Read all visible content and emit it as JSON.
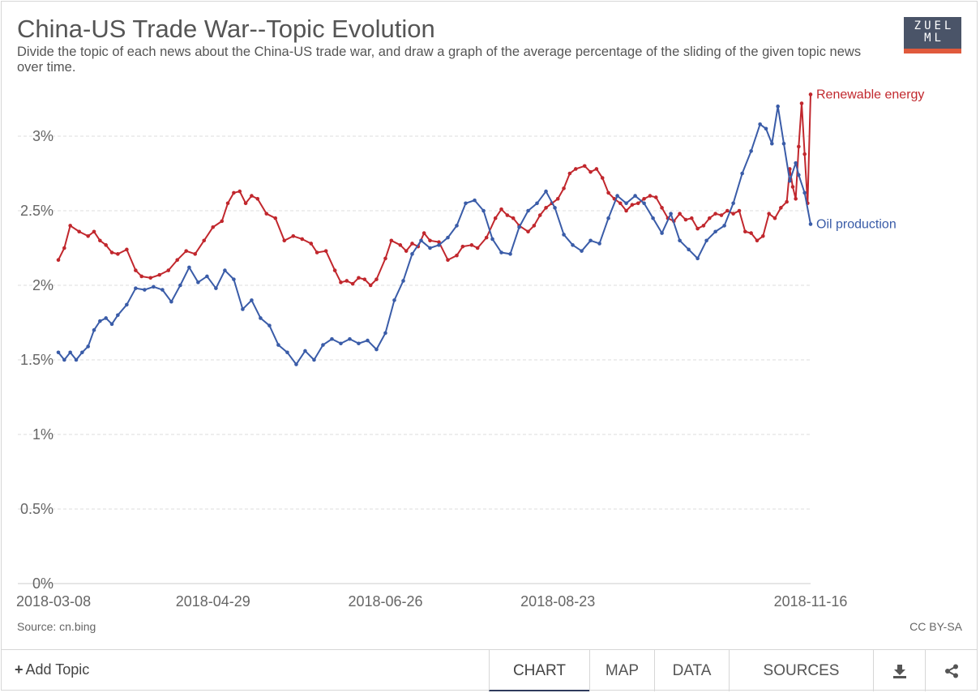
{
  "header": {
    "title": "China-US Trade War--Topic Evolution",
    "subtitle": "Divide the topic of each news about the China-US trade war, and draw a graph of the average percentage of the sliding of the given topic news over time.",
    "logo_text": "ZUEL ML"
  },
  "footer": {
    "source": "Source: cn.bing",
    "license": "CC BY-SA",
    "add_topic": "Add Topic",
    "tabs": [
      "CHART",
      "MAP",
      "DATA",
      "SOURCES"
    ],
    "icons": [
      "download-icon",
      "share-icon"
    ]
  },
  "colors": {
    "renewable": "#c1272d",
    "oil": "#3a5ca8",
    "grid": "#dddddd",
    "accent": "#2e3a5c"
  },
  "chart_data": {
    "type": "line",
    "xlabel": "",
    "ylabel": "",
    "x_range": [
      "2018-03-08",
      "2018-11-16"
    ],
    "x_ticks": [
      "2018-03-08",
      "2018-04-29",
      "2018-06-26",
      "2018-08-23",
      "2018-11-16"
    ],
    "ylim": [
      0,
      3.3
    ],
    "y_ticks": [
      0,
      0.5,
      1,
      1.5,
      2,
      2.5,
      3
    ],
    "y_tick_labels": [
      "0%",
      "0.5%",
      "1%",
      "1.5%",
      "2%",
      "2.5%",
      "3%"
    ],
    "grid": true,
    "series": [
      {
        "name": "Renewable energy",
        "points": [
          [
            "2018-03-08",
            2.17
          ],
          [
            "2018-03-10",
            2.25
          ],
          [
            "2018-03-12",
            2.4
          ],
          [
            "2018-03-15",
            2.36
          ],
          [
            "2018-03-18",
            2.33
          ],
          [
            "2018-03-20",
            2.36
          ],
          [
            "2018-03-22",
            2.3
          ],
          [
            "2018-03-24",
            2.27
          ],
          [
            "2018-03-26",
            2.22
          ],
          [
            "2018-03-28",
            2.21
          ],
          [
            "2018-03-31",
            2.24
          ],
          [
            "2018-04-03",
            2.1
          ],
          [
            "2018-04-05",
            2.06
          ],
          [
            "2018-04-08",
            2.05
          ],
          [
            "2018-04-11",
            2.07
          ],
          [
            "2018-04-14",
            2.1
          ],
          [
            "2018-04-17",
            2.17
          ],
          [
            "2018-04-20",
            2.23
          ],
          [
            "2018-04-23",
            2.21
          ],
          [
            "2018-04-26",
            2.3
          ],
          [
            "2018-04-29",
            2.39
          ],
          [
            "2018-05-02",
            2.43
          ],
          [
            "2018-05-04",
            2.55
          ],
          [
            "2018-05-06",
            2.62
          ],
          [
            "2018-05-08",
            2.63
          ],
          [
            "2018-05-10",
            2.55
          ],
          [
            "2018-05-12",
            2.6
          ],
          [
            "2018-05-14",
            2.58
          ],
          [
            "2018-05-17",
            2.48
          ],
          [
            "2018-05-20",
            2.45
          ],
          [
            "2018-05-23",
            2.3
          ],
          [
            "2018-05-26",
            2.33
          ],
          [
            "2018-05-29",
            2.31
          ],
          [
            "2018-06-01",
            2.28
          ],
          [
            "2018-06-03",
            2.22
          ],
          [
            "2018-06-06",
            2.23
          ],
          [
            "2018-06-09",
            2.1
          ],
          [
            "2018-06-11",
            2.02
          ],
          [
            "2018-06-13",
            2.03
          ],
          [
            "2018-06-15",
            2.01
          ],
          [
            "2018-06-17",
            2.05
          ],
          [
            "2018-06-19",
            2.04
          ],
          [
            "2018-06-21",
            2.0
          ],
          [
            "2018-06-23",
            2.04
          ],
          [
            "2018-06-26",
            2.18
          ],
          [
            "2018-06-28",
            2.3
          ],
          [
            "2018-07-01",
            2.27
          ],
          [
            "2018-07-03",
            2.23
          ],
          [
            "2018-07-05",
            2.28
          ],
          [
            "2018-07-07",
            2.26
          ],
          [
            "2018-07-09",
            2.35
          ],
          [
            "2018-07-11",
            2.3
          ],
          [
            "2018-07-14",
            2.29
          ],
          [
            "2018-07-17",
            2.17
          ],
          [
            "2018-07-20",
            2.2
          ],
          [
            "2018-07-22",
            2.26
          ],
          [
            "2018-07-25",
            2.27
          ],
          [
            "2018-07-27",
            2.25
          ],
          [
            "2018-07-30",
            2.32
          ],
          [
            "2018-08-02",
            2.45
          ],
          [
            "2018-08-04",
            2.51
          ],
          [
            "2018-08-06",
            2.47
          ],
          [
            "2018-08-08",
            2.45
          ],
          [
            "2018-08-10",
            2.4
          ],
          [
            "2018-08-13",
            2.36
          ],
          [
            "2018-08-15",
            2.4
          ],
          [
            "2018-08-17",
            2.47
          ],
          [
            "2018-08-19",
            2.52
          ],
          [
            "2018-08-21",
            2.55
          ],
          [
            "2018-08-23",
            2.58
          ],
          [
            "2018-08-25",
            2.65
          ],
          [
            "2018-08-27",
            2.75
          ],
          [
            "2018-08-29",
            2.78
          ],
          [
            "2018-09-01",
            2.8
          ],
          [
            "2018-09-03",
            2.76
          ],
          [
            "2018-09-05",
            2.78
          ],
          [
            "2018-09-07",
            2.72
          ],
          [
            "2018-09-09",
            2.62
          ],
          [
            "2018-09-11",
            2.58
          ],
          [
            "2018-09-13",
            2.55
          ],
          [
            "2018-09-15",
            2.5
          ],
          [
            "2018-09-17",
            2.54
          ],
          [
            "2018-09-19",
            2.55
          ],
          [
            "2018-09-21",
            2.58
          ],
          [
            "2018-09-23",
            2.6
          ],
          [
            "2018-09-25",
            2.59
          ],
          [
            "2018-09-27",
            2.52
          ],
          [
            "2018-09-29",
            2.45
          ],
          [
            "2018-10-01",
            2.43
          ],
          [
            "2018-10-03",
            2.48
          ],
          [
            "2018-10-05",
            2.44
          ],
          [
            "2018-10-07",
            2.45
          ],
          [
            "2018-10-09",
            2.38
          ],
          [
            "2018-10-11",
            2.4
          ],
          [
            "2018-10-13",
            2.45
          ],
          [
            "2018-10-15",
            2.48
          ],
          [
            "2018-10-17",
            2.47
          ],
          [
            "2018-10-19",
            2.5
          ],
          [
            "2018-10-21",
            2.48
          ],
          [
            "2018-10-23",
            2.5
          ],
          [
            "2018-10-25",
            2.36
          ],
          [
            "2018-10-27",
            2.35
          ],
          [
            "2018-10-29",
            2.3
          ],
          [
            "2018-10-31",
            2.33
          ],
          [
            "2018-11-02",
            2.48
          ],
          [
            "2018-11-04",
            2.45
          ],
          [
            "2018-11-06",
            2.52
          ],
          [
            "2018-11-08",
            2.56
          ],
          [
            "2018-11-09",
            2.78
          ],
          [
            "2018-11-10",
            2.66
          ],
          [
            "2018-11-11",
            2.58
          ],
          [
            "2018-11-12",
            2.93
          ],
          [
            "2018-11-13",
            3.22
          ],
          [
            "2018-11-14",
            2.88
          ],
          [
            "2018-11-15",
            2.55
          ],
          [
            "2018-11-16",
            3.28
          ]
        ]
      },
      {
        "name": "Oil production",
        "points": [
          [
            "2018-03-08",
            1.55
          ],
          [
            "2018-03-10",
            1.5
          ],
          [
            "2018-03-12",
            1.55
          ],
          [
            "2018-03-14",
            1.5
          ],
          [
            "2018-03-16",
            1.55
          ],
          [
            "2018-03-18",
            1.59
          ],
          [
            "2018-03-20",
            1.7
          ],
          [
            "2018-03-22",
            1.76
          ],
          [
            "2018-03-24",
            1.78
          ],
          [
            "2018-03-26",
            1.74
          ],
          [
            "2018-03-28",
            1.8
          ],
          [
            "2018-03-31",
            1.87
          ],
          [
            "2018-04-03",
            1.98
          ],
          [
            "2018-04-06",
            1.97
          ],
          [
            "2018-04-09",
            1.99
          ],
          [
            "2018-04-12",
            1.97
          ],
          [
            "2018-04-15",
            1.89
          ],
          [
            "2018-04-18",
            2.0
          ],
          [
            "2018-04-21",
            2.12
          ],
          [
            "2018-04-24",
            2.02
          ],
          [
            "2018-04-27",
            2.06
          ],
          [
            "2018-04-30",
            1.98
          ],
          [
            "2018-05-03",
            2.1
          ],
          [
            "2018-05-06",
            2.04
          ],
          [
            "2018-05-09",
            1.84
          ],
          [
            "2018-05-12",
            1.9
          ],
          [
            "2018-05-15",
            1.78
          ],
          [
            "2018-05-18",
            1.73
          ],
          [
            "2018-05-21",
            1.6
          ],
          [
            "2018-05-24",
            1.55
          ],
          [
            "2018-05-27",
            1.47
          ],
          [
            "2018-05-30",
            1.56
          ],
          [
            "2018-06-02",
            1.5
          ],
          [
            "2018-06-05",
            1.6
          ],
          [
            "2018-06-08",
            1.64
          ],
          [
            "2018-06-11",
            1.61
          ],
          [
            "2018-06-14",
            1.64
          ],
          [
            "2018-06-17",
            1.61
          ],
          [
            "2018-06-20",
            1.63
          ],
          [
            "2018-06-23",
            1.57
          ],
          [
            "2018-06-26",
            1.68
          ],
          [
            "2018-06-29",
            1.9
          ],
          [
            "2018-07-02",
            2.03
          ],
          [
            "2018-07-05",
            2.21
          ],
          [
            "2018-07-08",
            2.3
          ],
          [
            "2018-07-11",
            2.25
          ],
          [
            "2018-07-14",
            2.27
          ],
          [
            "2018-07-17",
            2.32
          ],
          [
            "2018-07-20",
            2.4
          ],
          [
            "2018-07-23",
            2.55
          ],
          [
            "2018-07-26",
            2.57
          ],
          [
            "2018-07-29",
            2.5
          ],
          [
            "2018-08-01",
            2.31
          ],
          [
            "2018-08-04",
            2.22
          ],
          [
            "2018-08-07",
            2.21
          ],
          [
            "2018-08-10",
            2.39
          ],
          [
            "2018-08-13",
            2.5
          ],
          [
            "2018-08-16",
            2.55
          ],
          [
            "2018-08-19",
            2.63
          ],
          [
            "2018-08-22",
            2.52
          ],
          [
            "2018-08-25",
            2.34
          ],
          [
            "2018-08-28",
            2.27
          ],
          [
            "2018-08-31",
            2.23
          ],
          [
            "2018-09-03",
            2.3
          ],
          [
            "2018-09-06",
            2.28
          ],
          [
            "2018-09-09",
            2.45
          ],
          [
            "2018-09-12",
            2.6
          ],
          [
            "2018-09-15",
            2.55
          ],
          [
            "2018-09-18",
            2.6
          ],
          [
            "2018-09-21",
            2.55
          ],
          [
            "2018-09-24",
            2.45
          ],
          [
            "2018-09-27",
            2.35
          ],
          [
            "2018-09-30",
            2.48
          ],
          [
            "2018-10-03",
            2.3
          ],
          [
            "2018-10-06",
            2.24
          ],
          [
            "2018-10-09",
            2.18
          ],
          [
            "2018-10-12",
            2.3
          ],
          [
            "2018-10-15",
            2.36
          ],
          [
            "2018-10-18",
            2.4
          ],
          [
            "2018-10-21",
            2.55
          ],
          [
            "2018-10-24",
            2.75
          ],
          [
            "2018-10-27",
            2.9
          ],
          [
            "2018-10-30",
            3.08
          ],
          [
            "2018-11-01",
            3.05
          ],
          [
            "2018-11-03",
            2.95
          ],
          [
            "2018-11-05",
            3.2
          ],
          [
            "2018-11-07",
            2.95
          ],
          [
            "2018-11-09",
            2.7
          ],
          [
            "2018-11-11",
            2.82
          ],
          [
            "2018-11-12",
            2.74
          ],
          [
            "2018-11-14",
            2.62
          ],
          [
            "2018-11-16",
            2.41
          ]
        ]
      }
    ]
  }
}
